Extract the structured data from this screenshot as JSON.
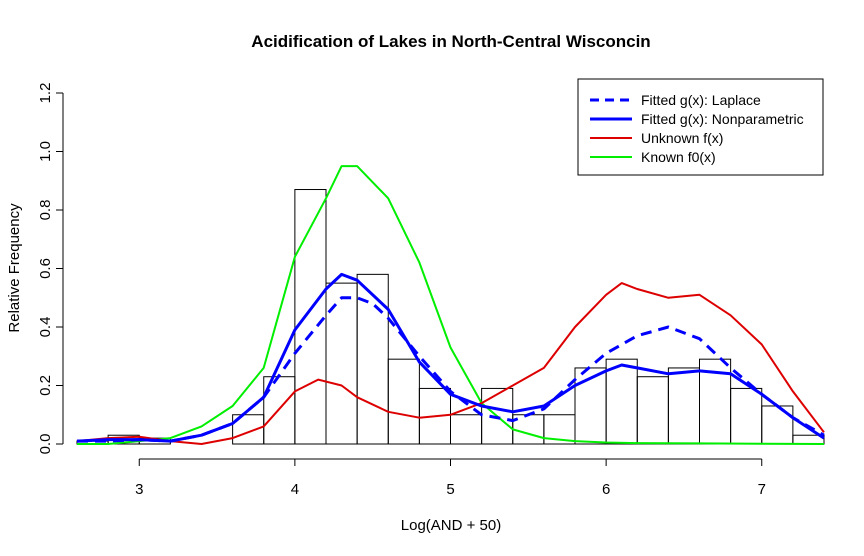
{
  "chart_data": {
    "type": "line",
    "title": "Acidification of Lakes in North-Central Wisconcin",
    "xlabel": "Log(AND + 50)",
    "ylabel": "Relative Frequency",
    "xlim": [
      2.6,
      7.4
    ],
    "ylim": [
      0,
      1.2
    ],
    "x_ticks": [
      "3",
      "4",
      "5",
      "6",
      "7"
    ],
    "y_ticks": [
      "0.0",
      "0.2",
      "0.4",
      "0.6",
      "0.8",
      "1.0",
      "1.2"
    ],
    "grid": false,
    "legend_position": "top-right",
    "histogram": {
      "bin_width": 0.2,
      "bins": [
        {
          "start": 2.6,
          "value": 0.01
        },
        {
          "start": 2.8,
          "value": 0.03
        },
        {
          "start": 3.0,
          "value": 0.02
        },
        {
          "start": 3.2,
          "value": 0.0
        },
        {
          "start": 3.4,
          "value": 0.0
        },
        {
          "start": 3.6,
          "value": 0.1
        },
        {
          "start": 3.8,
          "value": 0.23
        },
        {
          "start": 4.0,
          "value": 0.87
        },
        {
          "start": 4.2,
          "value": 0.55
        },
        {
          "start": 4.4,
          "value": 0.58
        },
        {
          "start": 4.6,
          "value": 0.29
        },
        {
          "start": 4.8,
          "value": 0.19
        },
        {
          "start": 5.0,
          "value": 0.1
        },
        {
          "start": 5.2,
          "value": 0.19
        },
        {
          "start": 5.4,
          "value": 0.1
        },
        {
          "start": 5.6,
          "value": 0.1
        },
        {
          "start": 5.8,
          "value": 0.26
        },
        {
          "start": 6.0,
          "value": 0.29
        },
        {
          "start": 6.2,
          "value": 0.23
        },
        {
          "start": 6.4,
          "value": 0.26
        },
        {
          "start": 6.6,
          "value": 0.29
        },
        {
          "start": 6.8,
          "value": 0.19
        },
        {
          "start": 7.0,
          "value": 0.13
        },
        {
          "start": 7.2,
          "value": 0.03
        }
      ]
    },
    "series": [
      {
        "name": "Fitted g(x): Laplace",
        "color": "#0000ff",
        "dash": "dashed",
        "x": [
          2.6,
          2.8,
          3.0,
          3.2,
          3.4,
          3.6,
          3.8,
          4.0,
          4.2,
          4.3,
          4.4,
          4.5,
          4.6,
          4.8,
          5.0,
          5.2,
          5.4,
          5.6,
          5.8,
          6.0,
          6.2,
          6.4,
          6.6,
          6.8,
          7.0,
          7.2,
          7.4
        ],
        "y": [
          0.01,
          0.01,
          0.015,
          0.01,
          0.03,
          0.07,
          0.16,
          0.31,
          0.44,
          0.5,
          0.5,
          0.48,
          0.43,
          0.3,
          0.18,
          0.1,
          0.08,
          0.12,
          0.22,
          0.31,
          0.37,
          0.4,
          0.36,
          0.26,
          0.17,
          0.09,
          0.03
        ]
      },
      {
        "name": "Fitted g(x): Nonparametric",
        "color": "#0000ff",
        "dash": "solid",
        "x": [
          2.6,
          2.8,
          3.0,
          3.2,
          3.4,
          3.6,
          3.8,
          4.0,
          4.2,
          4.3,
          4.4,
          4.6,
          4.8,
          5.0,
          5.2,
          5.4,
          5.6,
          5.8,
          6.0,
          6.1,
          6.2,
          6.4,
          6.6,
          6.8,
          7.0,
          7.2,
          7.4
        ],
        "y": [
          0.01,
          0.015,
          0.015,
          0.01,
          0.03,
          0.07,
          0.16,
          0.39,
          0.53,
          0.58,
          0.56,
          0.46,
          0.28,
          0.17,
          0.13,
          0.11,
          0.13,
          0.2,
          0.25,
          0.27,
          0.26,
          0.24,
          0.25,
          0.24,
          0.17,
          0.09,
          0.02
        ]
      },
      {
        "name": "Unknown f(x)",
        "color": "#dd0000",
        "dash": "solid",
        "x": [
          2.6,
          2.8,
          3.0,
          3.2,
          3.4,
          3.6,
          3.8,
          4.0,
          4.15,
          4.3,
          4.4,
          4.6,
          4.8,
          5.0,
          5.2,
          5.4,
          5.6,
          5.8,
          6.0,
          6.1,
          6.2,
          6.4,
          6.6,
          6.8,
          7.0,
          7.2,
          7.4
        ],
        "y": [
          0.01,
          0.02,
          0.025,
          0.01,
          0.0,
          0.02,
          0.06,
          0.18,
          0.22,
          0.2,
          0.16,
          0.11,
          0.09,
          0.1,
          0.14,
          0.2,
          0.26,
          0.4,
          0.51,
          0.55,
          0.53,
          0.5,
          0.51,
          0.44,
          0.34,
          0.18,
          0.04
        ]
      },
      {
        "name": "Known f0(x)",
        "color": "#00ee00",
        "dash": "solid",
        "x": [
          2.6,
          2.8,
          3.0,
          3.2,
          3.4,
          3.6,
          3.8,
          4.0,
          4.2,
          4.3,
          4.4,
          4.6,
          4.8,
          5.0,
          5.2,
          5.4,
          5.6,
          5.8,
          6.0,
          6.2,
          6.6,
          7.0,
          7.4
        ],
        "y": [
          0.0,
          0.0,
          0.01,
          0.02,
          0.06,
          0.13,
          0.26,
          0.64,
          0.84,
          0.95,
          0.95,
          0.84,
          0.62,
          0.33,
          0.14,
          0.05,
          0.02,
          0.01,
          0.005,
          0.003,
          0.002,
          0.001,
          0.0
        ]
      }
    ],
    "legend": [
      {
        "label": "Fitted g(x): Laplace",
        "color": "#0000ff",
        "dash": "dashed",
        "width": 3
      },
      {
        "label": "Fitted g(x): Nonparametric",
        "color": "#0000ff",
        "dash": "solid",
        "width": 3
      },
      {
        "label": "Unknown f(x)",
        "color": "#dd0000",
        "dash": "solid",
        "width": 2
      },
      {
        "label": "Known f0(x)",
        "color": "#00ee00",
        "dash": "solid",
        "width": 2
      }
    ]
  }
}
